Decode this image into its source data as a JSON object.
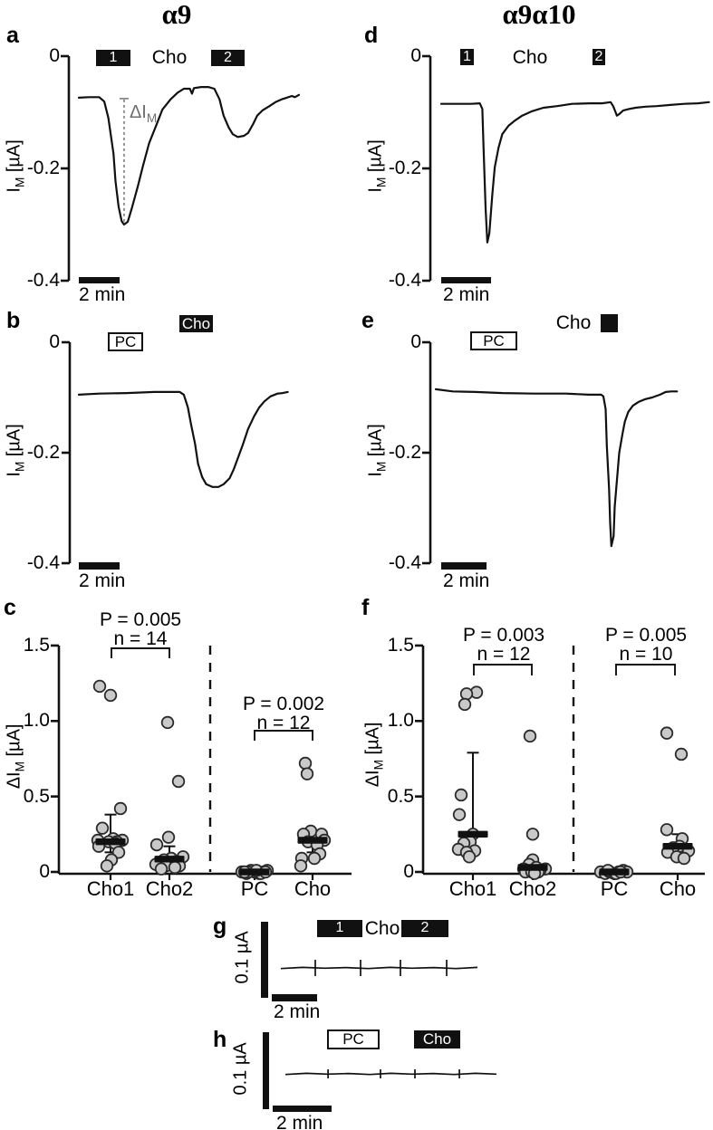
{
  "titles": {
    "left": "α9",
    "right": "α9α10"
  },
  "axis_labels": {
    "im": [
      "I",
      "M",
      " [µA]"
    ],
    "dim": [
      "ΔI",
      "M",
      " [µA]"
    ],
    "delta": [
      "ΔI",
      "M"
    ]
  },
  "scale": {
    "time": "2 min",
    "amp": "0.1 µA"
  },
  "chart_data": {
    "a": {
      "type": "line",
      "letter": "a",
      "ylabel": "I_M [µA]",
      "xscale": "2 min",
      "yticks": [
        {
          "label": "0",
          "v": 0
        },
        {
          "label": "-0.2",
          "v": -0.2
        },
        {
          "label": "-0.4",
          "v": -0.4
        }
      ],
      "annotations": {
        "bar1": "1",
        "cho": "Cho",
        "bar2": "2"
      },
      "delta_marker": {
        "t": 2.22,
        "v_top": -0.074,
        "v_bottom": -0.3
      },
      "trace": [
        [
          0,
          -0.074
        ],
        [
          0.5,
          -0.073
        ],
        [
          1.0,
          -0.073
        ],
        [
          1.25,
          -0.081
        ],
        [
          1.45,
          -0.11
        ],
        [
          1.7,
          -0.174
        ],
        [
          1.8,
          -0.223
        ],
        [
          1.95,
          -0.268
        ],
        [
          2.1,
          -0.294
        ],
        [
          2.22,
          -0.3
        ],
        [
          2.4,
          -0.295
        ],
        [
          2.6,
          -0.271
        ],
        [
          2.9,
          -0.231
        ],
        [
          3.15,
          -0.195
        ],
        [
          3.45,
          -0.155
        ],
        [
          3.8,
          -0.123
        ],
        [
          4.1,
          -0.095
        ],
        [
          4.5,
          -0.077
        ],
        [
          4.85,
          -0.065
        ],
        [
          5.15,
          -0.058
        ],
        [
          5.45,
          -0.058
        ],
        [
          5.55,
          -0.067
        ],
        [
          5.65,
          -0.057
        ],
        [
          6.0,
          -0.055
        ],
        [
          6.35,
          -0.055
        ],
        [
          6.65,
          -0.058
        ],
        [
          6.9,
          -0.077
        ],
        [
          7.1,
          -0.106
        ],
        [
          7.35,
          -0.127
        ],
        [
          7.55,
          -0.139
        ],
        [
          7.8,
          -0.144
        ],
        [
          8.1,
          -0.142
        ],
        [
          8.3,
          -0.137
        ],
        [
          8.55,
          -0.121
        ],
        [
          8.75,
          -0.106
        ],
        [
          9.0,
          -0.097
        ],
        [
          9.35,
          -0.089
        ],
        [
          9.65,
          -0.082
        ],
        [
          9.95,
          -0.077
        ],
        [
          10.2,
          -0.074
        ],
        [
          10.45,
          -0.071
        ],
        [
          10.6,
          -0.073
        ],
        [
          10.8,
          -0.069
        ]
      ]
    },
    "b": {
      "type": "line",
      "letter": "b",
      "ylabel": "I_M [µA]",
      "xscale": "2 min",
      "yticks": [
        {
          "label": "0",
          "v": 0
        },
        {
          "label": "-0.2",
          "v": -0.2
        },
        {
          "label": "-0.4",
          "v": -0.4
        }
      ],
      "annotations": {
        "pc": "PC",
        "cho": "Cho"
      },
      "trace": [
        [
          0,
          -0.095
        ],
        [
          1.0,
          -0.093
        ],
        [
          2.35,
          -0.092
        ],
        [
          3.7,
          -0.09
        ],
        [
          4.95,
          -0.09
        ],
        [
          5.15,
          -0.095
        ],
        [
          5.35,
          -0.118
        ],
        [
          5.5,
          -0.148
        ],
        [
          5.7,
          -0.184
        ],
        [
          5.85,
          -0.22
        ],
        [
          6.05,
          -0.244
        ],
        [
          6.25,
          -0.257
        ],
        [
          6.55,
          -0.262
        ],
        [
          6.85,
          -0.262
        ],
        [
          7.1,
          -0.257
        ],
        [
          7.4,
          -0.246
        ],
        [
          7.6,
          -0.23
        ],
        [
          7.8,
          -0.21
        ],
        [
          8.05,
          -0.185
        ],
        [
          8.3,
          -0.157
        ],
        [
          8.6,
          -0.134
        ],
        [
          8.85,
          -0.118
        ],
        [
          9.1,
          -0.107
        ],
        [
          9.4,
          -0.098
        ],
        [
          9.75,
          -0.093
        ],
        [
          10.0,
          -0.092
        ],
        [
          10.25,
          -0.09
        ]
      ]
    },
    "d": {
      "type": "line",
      "letter": "d",
      "ylabel": "I_M [µA]",
      "xscale": "2 min",
      "yticks": [
        {
          "label": "0",
          "v": 0
        },
        {
          "label": "-0.2",
          "v": -0.2
        },
        {
          "label": "-0.4",
          "v": -0.4
        }
      ],
      "annotations": {
        "bar1": "1",
        "cho": "Cho",
        "bar2": "2"
      },
      "trace": [
        [
          0,
          -0.085
        ],
        [
          1.2,
          -0.085
        ],
        [
          1.55,
          -0.084
        ],
        [
          1.65,
          -0.094
        ],
        [
          1.7,
          -0.166
        ],
        [
          1.78,
          -0.271
        ],
        [
          1.85,
          -0.332
        ],
        [
          1.93,
          -0.316
        ],
        [
          2.05,
          -0.247
        ],
        [
          2.15,
          -0.198
        ],
        [
          2.3,
          -0.163
        ],
        [
          2.45,
          -0.139
        ],
        [
          2.7,
          -0.124
        ],
        [
          2.95,
          -0.115
        ],
        [
          3.25,
          -0.106
        ],
        [
          3.65,
          -0.098
        ],
        [
          4.1,
          -0.092
        ],
        [
          4.65,
          -0.089
        ],
        [
          5.25,
          -0.085
        ],
        [
          5.95,
          -0.084
        ],
        [
          6.45,
          -0.084
        ],
        [
          6.8,
          -0.082
        ],
        [
          6.9,
          -0.089
        ],
        [
          7.0,
          -0.1
        ],
        [
          7.05,
          -0.106
        ],
        [
          7.15,
          -0.103
        ],
        [
          7.3,
          -0.097
        ],
        [
          7.55,
          -0.094
        ],
        [
          7.8,
          -0.092
        ],
        [
          8.2,
          -0.09
        ],
        [
          8.65,
          -0.089
        ],
        [
          9.2,
          -0.087
        ],
        [
          9.75,
          -0.085
        ],
        [
          10.3,
          -0.084
        ],
        [
          10.75,
          -0.082
        ]
      ]
    },
    "e": {
      "type": "line",
      "letter": "e",
      "ylabel": "I_M [µA]",
      "xscale": "2 min",
      "yticks": [
        {
          "label": "0",
          "v": 0
        },
        {
          "label": "-0.2",
          "v": -0.2
        },
        {
          "label": "-0.4",
          "v": -0.4
        }
      ],
      "annotations": {
        "pc": "PC",
        "cho": "Cho",
        "sq": ""
      },
      "trace": [
        [
          0,
          -0.085
        ],
        [
          0.75,
          -0.089
        ],
        [
          1.75,
          -0.09
        ],
        [
          2.95,
          -0.092
        ],
        [
          4.35,
          -0.093
        ],
        [
          5.75,
          -0.093
        ],
        [
          6.75,
          -0.095
        ],
        [
          7.3,
          -0.095
        ],
        [
          7.4,
          -0.098
        ],
        [
          7.5,
          -0.121
        ],
        [
          7.55,
          -0.187
        ],
        [
          7.65,
          -0.266
        ],
        [
          7.7,
          -0.328
        ],
        [
          7.75,
          -0.369
        ],
        [
          7.85,
          -0.351
        ],
        [
          7.9,
          -0.298
        ],
        [
          8.0,
          -0.249
        ],
        [
          8.1,
          -0.2
        ],
        [
          8.25,
          -0.164
        ],
        [
          8.35,
          -0.143
        ],
        [
          8.5,
          -0.126
        ],
        [
          8.7,
          -0.115
        ],
        [
          8.95,
          -0.108
        ],
        [
          9.25,
          -0.103
        ],
        [
          9.55,
          -0.1
        ],
        [
          9.9,
          -0.095
        ],
        [
          10.15,
          -0.09
        ],
        [
          10.4,
          -0.089
        ],
        [
          10.65,
          -0.089
        ]
      ]
    },
    "c": {
      "type": "scatter",
      "letter": "c",
      "ylabel": "ΔI_M [µA]",
      "yticks": [
        {
          "label": "0",
          "v": 0
        },
        {
          "label": "0.5",
          "v": 0.5
        },
        {
          "label": "1.0",
          "v": 1.0
        },
        {
          "label": "1.5",
          "v": 1.5
        }
      ],
      "groups": [
        {
          "name": "Cho1",
          "median": 0.2,
          "whisker": {
            "lo": 0.13,
            "hi": 0.38,
            "caps": "both"
          },
          "points": [
            [
              -12,
              1.23
            ],
            [
              0,
              1.17
            ],
            [
              11,
              0.42
            ],
            [
              -9,
              0.29
            ],
            [
              3,
              0.22
            ],
            [
              -14,
              0.21
            ],
            [
              13,
              0.21
            ],
            [
              7,
              0.2
            ],
            [
              -2,
              0.2
            ],
            [
              5,
              0.19
            ],
            [
              -13,
              0.17
            ],
            [
              9,
              0.13
            ],
            [
              1,
              0.08
            ],
            [
              -4,
              0.04
            ]
          ]
        },
        {
          "name": "Cho2",
          "median": 0.085,
          "whisker": {
            "lo": 0.085,
            "hi": 0.17,
            "caps": "top"
          },
          "points": [
            [
              -2,
              0.99
            ],
            [
              10,
              0.6
            ],
            [
              -1,
              0.23
            ],
            [
              -14,
              0.18
            ],
            [
              15,
              0.1
            ],
            [
              2,
              0.09
            ],
            [
              -6,
              0.08
            ],
            [
              8,
              0.07
            ],
            [
              0,
              0.06
            ],
            [
              -15,
              0.05
            ],
            [
              -4,
              0.04
            ],
            [
              11,
              0.04
            ],
            [
              6,
              0.03
            ],
            [
              -9,
              0.02
            ]
          ]
        },
        {
          "name": "PC",
          "median": 0.0,
          "whisker": null,
          "points": [
            [
              -14,
              0.0
            ],
            [
              -9,
              -0.01
            ],
            [
              -4,
              0.01
            ],
            [
              0,
              0.0
            ],
            [
              5,
              -0.01
            ],
            [
              10,
              0.0
            ],
            [
              14,
              0.01
            ],
            [
              -7,
              0.0
            ],
            [
              7,
              -0.01
            ],
            [
              2,
              0.01
            ],
            [
              -11,
              0.0
            ],
            [
              12,
              0.0
            ]
          ]
        },
        {
          "name": "Cho",
          "median": 0.21,
          "whisker": {
            "lo": 0.13,
            "hi": 0.25,
            "caps": "both"
          },
          "points": [
            [
              -8,
              0.72
            ],
            [
              -6,
              0.65
            ],
            [
              -2,
              0.27
            ],
            [
              -10,
              0.25
            ],
            [
              10,
              0.25
            ],
            [
              13,
              0.21
            ],
            [
              -5,
              0.2
            ],
            [
              5,
              0.18
            ],
            [
              8,
              0.12
            ],
            [
              2,
              0.09
            ],
            [
              -12,
              0.09
            ],
            [
              -13,
              0.04
            ]
          ]
        }
      ],
      "comparisons": [
        {
          "p": "P = 0.005",
          "n": "n = 14"
        },
        {
          "p": "P = 0.002",
          "n": "n = 12"
        }
      ]
    },
    "f": {
      "type": "scatter",
      "letter": "f",
      "ylabel": "ΔI_M [µA]",
      "yticks": [
        {
          "label": "0",
          "v": 0
        },
        {
          "label": "0.5",
          "v": 0.5
        },
        {
          "label": "1.0",
          "v": 1.0
        },
        {
          "label": "1.5",
          "v": 1.5
        }
      ],
      "groups": [
        {
          "name": "Cho1",
          "median": 0.25,
          "whisker": {
            "lo": 0.25,
            "hi": 0.79,
            "caps": "top"
          },
          "points": [
            [
              4,
              1.19
            ],
            [
              -7,
              1.18
            ],
            [
              -9,
              1.11
            ],
            [
              -13,
              0.51
            ],
            [
              -15,
              0.38
            ],
            [
              0,
              0.25
            ],
            [
              -3,
              0.2
            ],
            [
              -10,
              0.19
            ],
            [
              -16,
              0.15
            ],
            [
              2,
              0.14
            ],
            [
              -7,
              0.13
            ],
            [
              -4,
              0.1
            ]
          ]
        },
        {
          "name": "Cho2",
          "median": 0.03,
          "whisker": {
            "lo": 0.0,
            "hi": 0.08,
            "caps": "none"
          },
          "points": [
            [
              -3,
              0.9
            ],
            [
              0,
              0.25
            ],
            [
              0,
              0.08
            ],
            [
              -4,
              0.05
            ],
            [
              4,
              0.03
            ],
            [
              14,
              0.02
            ],
            [
              -10,
              0.02
            ],
            [
              8,
              0.01
            ],
            [
              -8,
              0.0
            ],
            [
              6,
              0.0
            ],
            [
              -1,
              0.0
            ],
            [
              2,
              -0.01
            ]
          ]
        },
        {
          "name": "PC",
          "median": 0.0,
          "whisker": null,
          "points": [
            [
              -15,
              0.0
            ],
            [
              -10,
              -0.01
            ],
            [
              -5,
              0.0
            ],
            [
              0,
              -0.01
            ],
            [
              5,
              0.0
            ],
            [
              10,
              0.01
            ],
            [
              14,
              0.0
            ],
            [
              2,
              -0.01
            ],
            [
              -7,
              0.01
            ],
            [
              7,
              0.0
            ]
          ]
        },
        {
          "name": "Cho",
          "median": 0.17,
          "whisker": {
            "lo": 0.1,
            "hi": 0.25,
            "caps": "both"
          },
          "points": [
            [
              -12,
              0.92
            ],
            [
              4,
              0.78
            ],
            [
              -12,
              0.28
            ],
            [
              5,
              0.22
            ],
            [
              2,
              0.17
            ],
            [
              -5,
              0.16
            ],
            [
              12,
              0.14
            ],
            [
              -11,
              0.13
            ],
            [
              -1,
              0.1
            ],
            [
              7,
              0.09
            ]
          ]
        }
      ],
      "comparisons": [
        {
          "p": "P =  0.003",
          "n": "n = 12"
        },
        {
          "p": "P = 0.005",
          "n": "n = 10"
        }
      ]
    },
    "g": {
      "type": "flat-trace",
      "letter": "g",
      "yscale": "0.1 µA",
      "xscale": "2 min",
      "annotations": {
        "bar1": "1",
        "cho": "Cho",
        "bar2": "2"
      },
      "trace": {
        "t_end": 8.68,
        "spikes": [
          1.52,
          3.52,
          5.28,
          7.32
        ]
      }
    },
    "h": {
      "type": "flat-trace",
      "letter": "h",
      "yscale": "0.1 µA",
      "xscale": "2 min",
      "annotations": {
        "pc": "PC",
        "cho": "Cho"
      },
      "trace": {
        "t_end": 7.17,
        "spikes": [
          1.45,
          3.23,
          4.4,
          5.91
        ]
      }
    }
  }
}
